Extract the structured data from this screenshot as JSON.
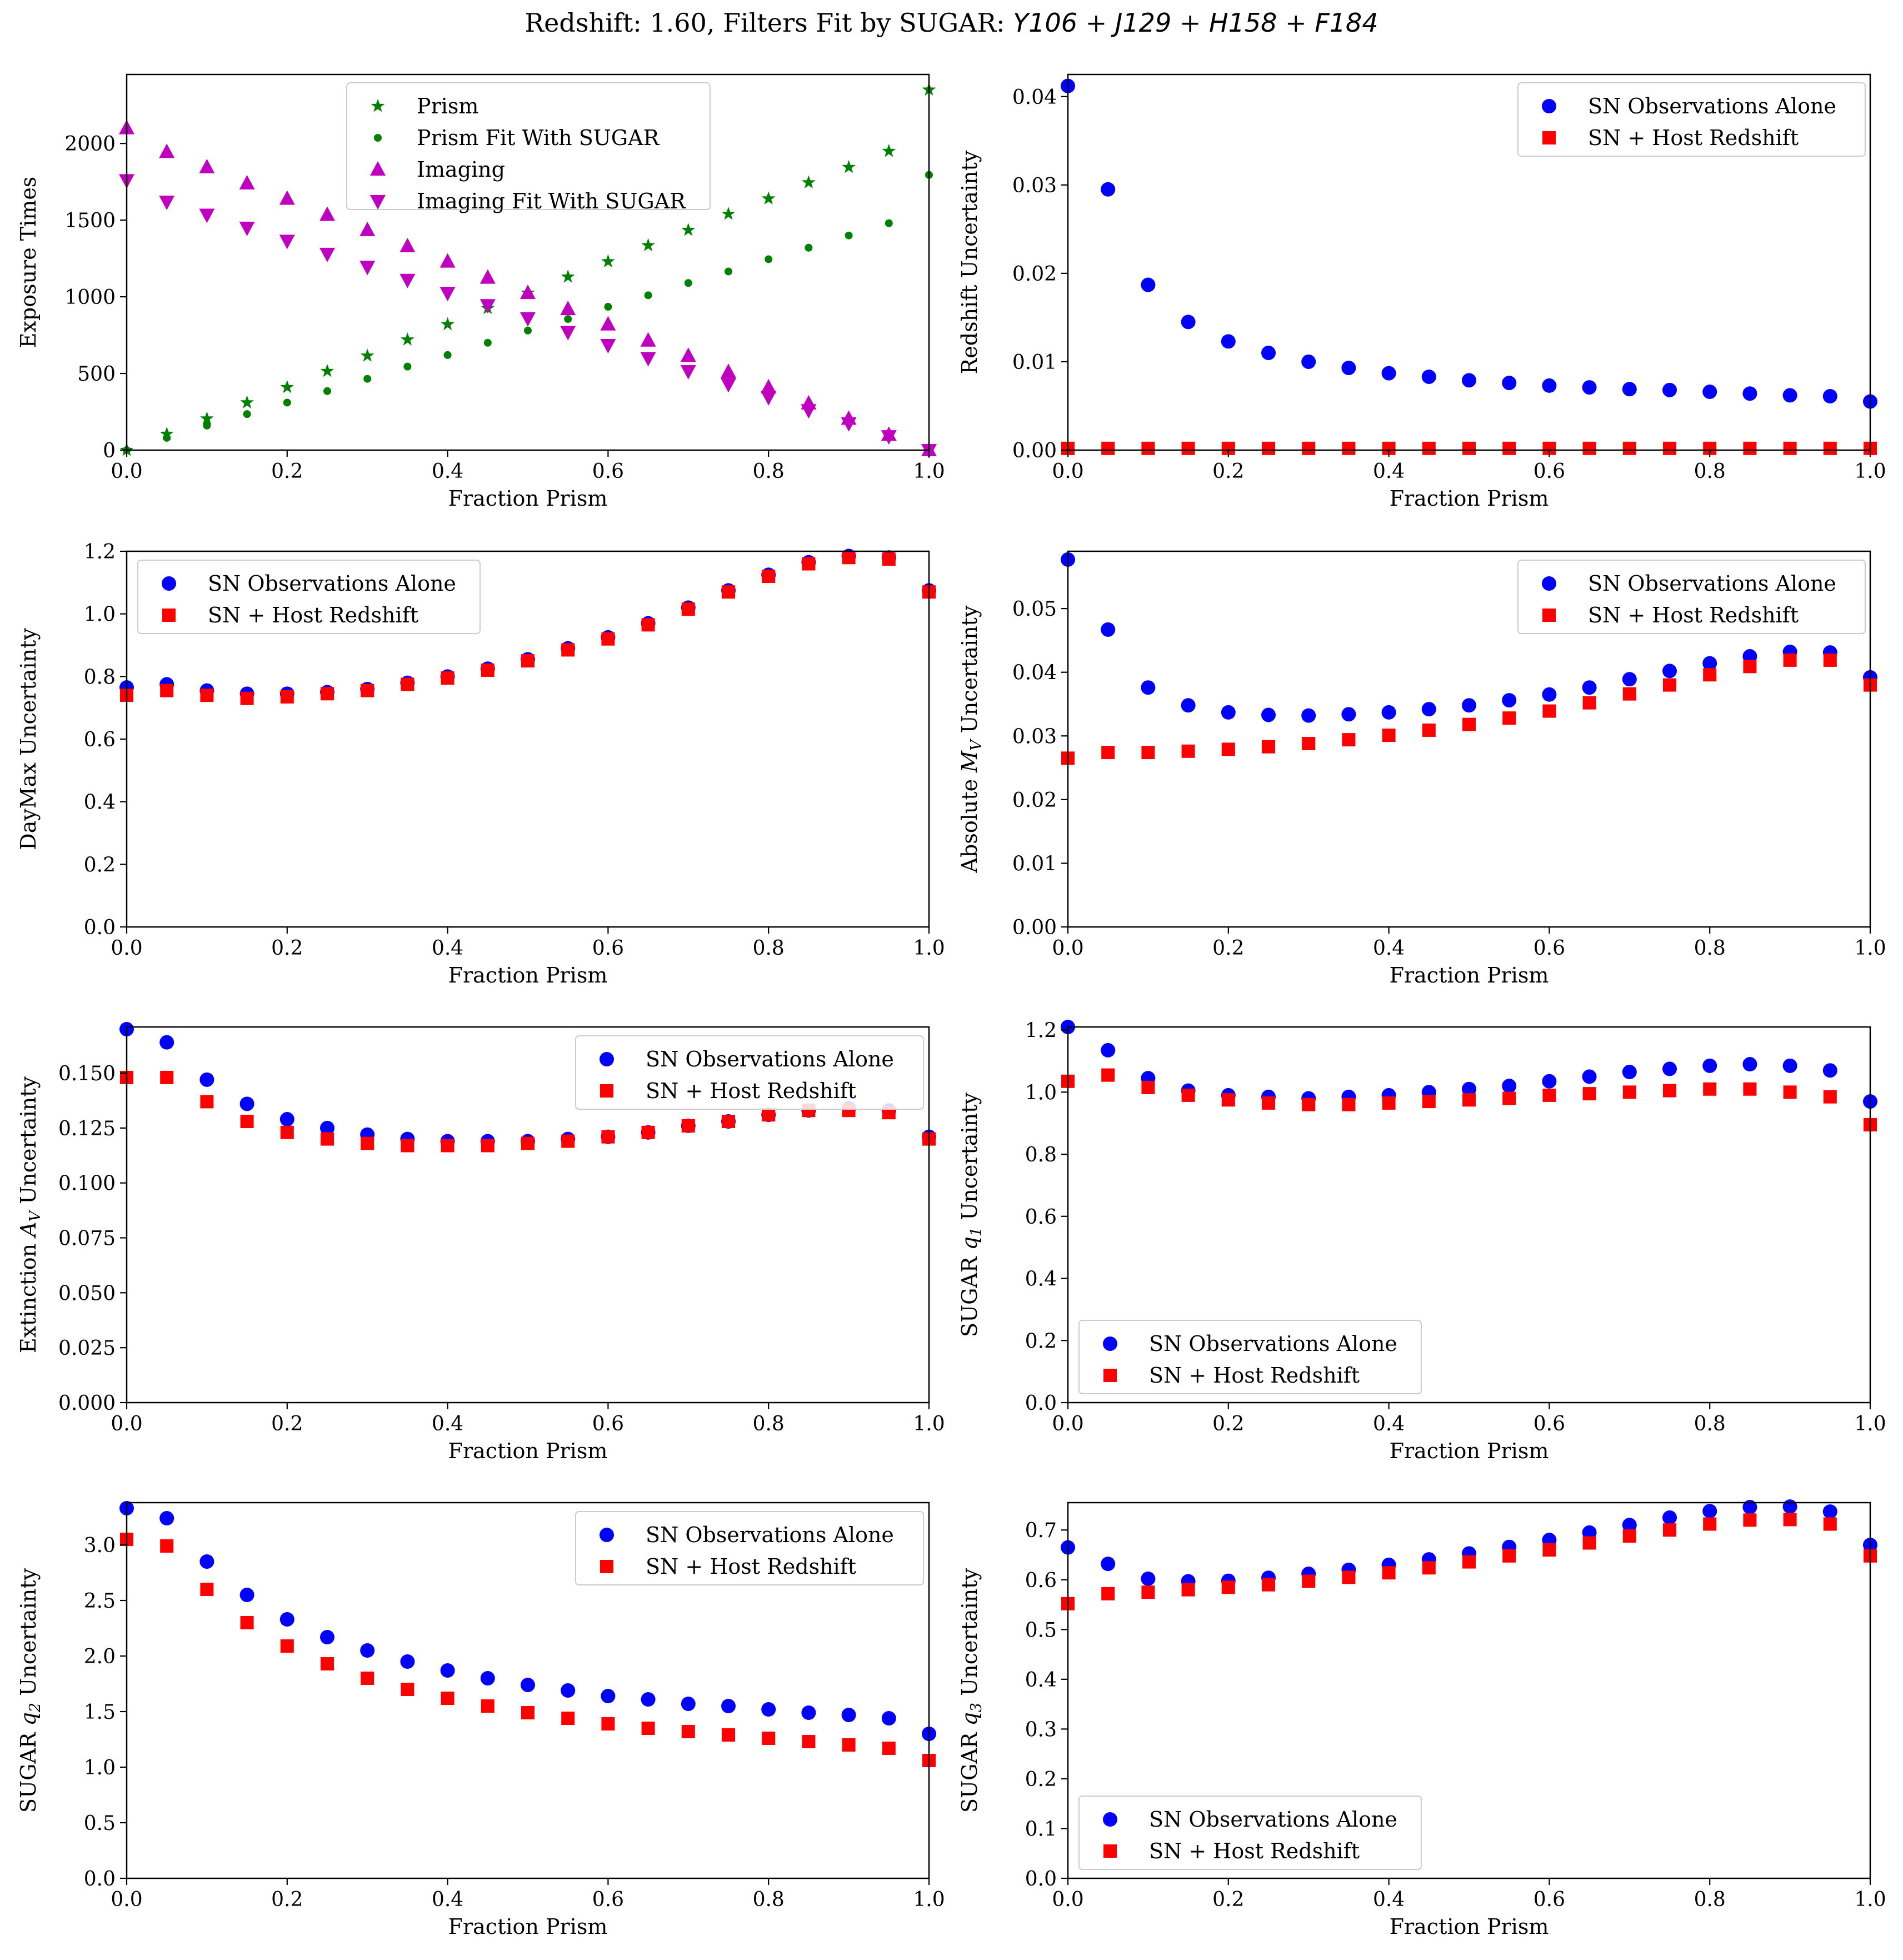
{
  "title": {
    "prefix": "Redshift: 1.60, Filters Fit by SUGAR: ",
    "filters": [
      "Y106",
      "J129",
      "H158",
      "F184"
    ],
    "joiner": " + "
  },
  "colors": {
    "green": "#008000",
    "magenta": "#bf00bf",
    "blue": "#0000ff",
    "red": "#ff0000"
  },
  "chart_data": [
    {
      "type": "scatter",
      "xlabel": "Fraction Prism",
      "ylabel": "Exposure Times",
      "xlim": [
        0,
        1.0
      ],
      "ylim": [
        0,
        2450
      ],
      "xticks": [
        0.0,
        0.2,
        0.4,
        0.6,
        0.8,
        1.0
      ],
      "xtick_labels": [
        "0.0",
        "0.2",
        "0.4",
        "0.6",
        "0.8",
        "1.0"
      ],
      "yticks": [
        0,
        500,
        1000,
        1500,
        2000
      ],
      "ytick_labels": [
        "0",
        "500",
        "1000",
        "1500",
        "2000"
      ],
      "legend_loc": "upper-center",
      "x": [
        0,
        0.05,
        0.1,
        0.15,
        0.2,
        0.25,
        0.3,
        0.35,
        0.4,
        0.45,
        0.5,
        0.55,
        0.6,
        0.65,
        0.7,
        0.75,
        0.8,
        0.85,
        0.9,
        0.95,
        1.0
      ],
      "series": [
        {
          "name": "Prism",
          "marker": "star",
          "color": "#008000",
          "values": [
            0,
            105,
            205,
            310,
            410,
            515,
            615,
            720,
            820,
            925,
            1025,
            1130,
            1230,
            1335,
            1435,
            1540,
            1640,
            1745,
            1845,
            1950,
            2350
          ]
        },
        {
          "name": "Prism Fit With SUGAR",
          "marker": "dot",
          "color": "#008000",
          "values": [
            0,
            80,
            160,
            235,
            310,
            385,
            465,
            545,
            620,
            700,
            780,
            855,
            935,
            1010,
            1090,
            1165,
            1245,
            1320,
            1400,
            1480,
            1795
          ]
        },
        {
          "name": "Imaging",
          "marker": "triangle-up",
          "color": "#bf00bf",
          "values": [
            2100,
            1945,
            1845,
            1740,
            1640,
            1535,
            1435,
            1330,
            1230,
            1125,
            1025,
            920,
            820,
            715,
            615,
            510,
            410,
            305,
            205,
            100,
            0
          ]
        },
        {
          "name": "Imaging Fit With SUGAR",
          "marker": "triangle-down",
          "color": "#bf00bf",
          "values": [
            1760,
            1620,
            1535,
            1450,
            1365,
            1280,
            1195,
            1110,
            1025,
            945,
            860,
            770,
            685,
            600,
            515,
            430,
            345,
            260,
            175,
            90,
            0
          ]
        }
      ]
    },
    {
      "type": "scatter",
      "xlabel": "Fraction Prism",
      "ylabel": "Redshift Uncertainty",
      "xlim": [
        0,
        1.0
      ],
      "ylim": [
        0,
        0.0425
      ],
      "xticks": [
        0.0,
        0.2,
        0.4,
        0.6,
        0.8,
        1.0
      ],
      "xtick_labels": [
        "0.0",
        "0.2",
        "0.4",
        "0.6",
        "0.8",
        "1.0"
      ],
      "yticks": [
        0,
        0.01,
        0.02,
        0.03,
        0.04
      ],
      "ytick_labels": [
        "0.00",
        "0.01",
        "0.02",
        "0.03",
        "0.04"
      ],
      "legend_loc": "upper-right",
      "x": [
        0,
        0.05,
        0.1,
        0.15,
        0.2,
        0.25,
        0.3,
        0.35,
        0.4,
        0.45,
        0.5,
        0.55,
        0.6,
        0.65,
        0.7,
        0.75,
        0.8,
        0.85,
        0.9,
        0.95,
        1.0
      ],
      "series": [
        {
          "name": "SN Observations Alone",
          "marker": "circle",
          "color": "#0000ff",
          "values": [
            0.0412,
            0.0295,
            0.0187,
            0.0145,
            0.0123,
            0.011,
            0.01,
            0.0093,
            0.0087,
            0.0083,
            0.0079,
            0.0076,
            0.0073,
            0.0071,
            0.0069,
            0.0068,
            0.0066,
            0.0064,
            0.0062,
            0.0061,
            0.0055
          ]
        },
        {
          "name": "SN + Host Redshift",
          "marker": "square",
          "color": "#ff0000",
          "values": [
            0.0002,
            0.0002,
            0.0002,
            0.0002,
            0.0002,
            0.0002,
            0.0002,
            0.0002,
            0.0002,
            0.0002,
            0.0002,
            0.0002,
            0.0002,
            0.0002,
            0.0002,
            0.0002,
            0.0002,
            0.0002,
            0.0002,
            0.0002,
            0.0002
          ]
        }
      ]
    },
    {
      "type": "scatter",
      "xlabel": "Fraction Prism",
      "ylabel": "DayMax Uncertainty",
      "xlim": [
        0,
        1.0
      ],
      "ylim": [
        0,
        1.2
      ],
      "xticks": [
        0.0,
        0.2,
        0.4,
        0.6,
        0.8,
        1.0
      ],
      "xtick_labels": [
        "0.0",
        "0.2",
        "0.4",
        "0.6",
        "0.8",
        "1.0"
      ],
      "yticks": [
        0,
        0.2,
        0.4,
        0.6,
        0.8,
        1.0,
        1.2
      ],
      "ytick_labels": [
        "0.0",
        "0.2",
        "0.4",
        "0.6",
        "0.8",
        "1.0",
        "1.2"
      ],
      "legend_loc": "upper-left",
      "x": [
        0,
        0.05,
        0.1,
        0.15,
        0.2,
        0.25,
        0.3,
        0.35,
        0.4,
        0.45,
        0.5,
        0.55,
        0.6,
        0.65,
        0.7,
        0.75,
        0.8,
        0.85,
        0.9,
        0.95,
        1.0
      ],
      "series": [
        {
          "name": "SN Observations Alone",
          "marker": "circle",
          "color": "#0000ff",
          "values": [
            0.765,
            0.775,
            0.755,
            0.745,
            0.745,
            0.75,
            0.76,
            0.78,
            0.8,
            0.825,
            0.855,
            0.89,
            0.925,
            0.97,
            1.02,
            1.075,
            1.125,
            1.165,
            1.185,
            1.18,
            1.075
          ]
        },
        {
          "name": "SN + Host Redshift",
          "marker": "square",
          "color": "#ff0000",
          "values": [
            0.74,
            0.755,
            0.74,
            0.73,
            0.735,
            0.745,
            0.755,
            0.775,
            0.795,
            0.82,
            0.85,
            0.885,
            0.92,
            0.965,
            1.015,
            1.07,
            1.12,
            1.16,
            1.18,
            1.175,
            1.07
          ]
        }
      ]
    },
    {
      "type": "scatter",
      "xlabel": "Fraction Prism",
      "ylabel": "Absolute M_V Uncertainty",
      "xlim": [
        0,
        1.0
      ],
      "ylim": [
        0,
        0.059
      ],
      "xticks": [
        0.0,
        0.2,
        0.4,
        0.6,
        0.8,
        1.0
      ],
      "xtick_labels": [
        "0.0",
        "0.2",
        "0.4",
        "0.6",
        "0.8",
        "1.0"
      ],
      "yticks": [
        0,
        0.01,
        0.02,
        0.03,
        0.04,
        0.05
      ],
      "ytick_labels": [
        "0.00",
        "0.01",
        "0.02",
        "0.03",
        "0.04",
        "0.05"
      ],
      "legend_loc": "upper-right",
      "x": [
        0,
        0.05,
        0.1,
        0.15,
        0.2,
        0.25,
        0.3,
        0.35,
        0.4,
        0.45,
        0.5,
        0.55,
        0.6,
        0.65,
        0.7,
        0.75,
        0.8,
        0.85,
        0.9,
        0.95,
        1.0
      ],
      "series": [
        {
          "name": "SN Observations Alone",
          "marker": "circle",
          "color": "#0000ff",
          "values": [
            0.0577,
            0.0467,
            0.0376,
            0.0348,
            0.0337,
            0.0333,
            0.0332,
            0.0334,
            0.0337,
            0.0342,
            0.0348,
            0.0356,
            0.0365,
            0.0376,
            0.0389,
            0.0402,
            0.0414,
            0.0425,
            0.0432,
            0.0431,
            0.0392
          ]
        },
        {
          "name": "SN + Host Redshift",
          "marker": "square",
          "color": "#ff0000",
          "values": [
            0.0265,
            0.0274,
            0.0274,
            0.0276,
            0.0279,
            0.0283,
            0.0288,
            0.0294,
            0.0301,
            0.0309,
            0.0318,
            0.0328,
            0.0339,
            0.0352,
            0.0366,
            0.038,
            0.0396,
            0.0409,
            0.0419,
            0.0419,
            0.038
          ]
        }
      ]
    },
    {
      "type": "scatter",
      "xlabel": "Fraction Prism",
      "ylabel": "Extinction A_V Uncertainty",
      "xlim": [
        0,
        1.0
      ],
      "ylim": [
        0,
        0.171
      ],
      "xticks": [
        0.0,
        0.2,
        0.4,
        0.6,
        0.8,
        1.0
      ],
      "xtick_labels": [
        "0.0",
        "0.2",
        "0.4",
        "0.6",
        "0.8",
        "1.0"
      ],
      "yticks": [
        0,
        0.025,
        0.05,
        0.075,
        0.1,
        0.125,
        0.15
      ],
      "ytick_labels": [
        "0.000",
        "0.025",
        "0.050",
        "0.075",
        "0.100",
        "0.125",
        "0.150"
      ],
      "legend_loc": "upper-right",
      "x": [
        0,
        0.05,
        0.1,
        0.15,
        0.2,
        0.25,
        0.3,
        0.35,
        0.4,
        0.45,
        0.5,
        0.55,
        0.6,
        0.65,
        0.7,
        0.75,
        0.8,
        0.85,
        0.9,
        0.95,
        1.0
      ],
      "series": [
        {
          "name": "SN Observations Alone",
          "marker": "circle",
          "color": "#0000ff",
          "values": [
            0.17,
            0.164,
            0.147,
            0.136,
            0.129,
            0.125,
            0.122,
            0.12,
            0.119,
            0.119,
            0.119,
            0.12,
            0.121,
            0.123,
            0.126,
            0.128,
            0.131,
            0.133,
            0.134,
            0.133,
            0.121
          ]
        },
        {
          "name": "SN + Host Redshift",
          "marker": "square",
          "color": "#ff0000",
          "values": [
            0.148,
            0.148,
            0.137,
            0.128,
            0.123,
            0.12,
            0.118,
            0.117,
            0.117,
            0.117,
            0.118,
            0.119,
            0.121,
            0.123,
            0.126,
            0.128,
            0.131,
            0.133,
            0.133,
            0.132,
            0.12
          ]
        }
      ]
    },
    {
      "type": "scatter",
      "xlabel": "Fraction Prism",
      "ylabel": "SUGAR q_1 Uncertainty",
      "xlim": [
        0,
        1.0
      ],
      "ylim": [
        0,
        1.21
      ],
      "xticks": [
        0.0,
        0.2,
        0.4,
        0.6,
        0.8,
        1.0
      ],
      "xtick_labels": [
        "0.0",
        "0.2",
        "0.4",
        "0.6",
        "0.8",
        "1.0"
      ],
      "yticks": [
        0,
        0.2,
        0.4,
        0.6,
        0.8,
        1.0,
        1.2
      ],
      "ytick_labels": [
        "0.0",
        "0.2",
        "0.4",
        "0.6",
        "0.8",
        "1.0",
        "1.2"
      ],
      "legend_loc": "lower-left",
      "x": [
        0,
        0.05,
        0.1,
        0.15,
        0.2,
        0.25,
        0.3,
        0.35,
        0.4,
        0.45,
        0.5,
        0.55,
        0.6,
        0.65,
        0.7,
        0.75,
        0.8,
        0.85,
        0.9,
        0.95,
        1.0
      ],
      "series": [
        {
          "name": "SN Observations Alone",
          "marker": "circle",
          "color": "#0000ff",
          "values": [
            1.21,
            1.135,
            1.045,
            1.005,
            0.99,
            0.985,
            0.98,
            0.985,
            0.99,
            1.0,
            1.01,
            1.02,
            1.035,
            1.05,
            1.065,
            1.075,
            1.085,
            1.09,
            1.085,
            1.07,
            0.97
          ]
        },
        {
          "name": "SN + Host Redshift",
          "marker": "square",
          "color": "#ff0000",
          "values": [
            1.035,
            1.055,
            1.015,
            0.99,
            0.975,
            0.965,
            0.96,
            0.96,
            0.965,
            0.97,
            0.975,
            0.98,
            0.99,
            0.995,
            1.0,
            1.005,
            1.01,
            1.01,
            1.0,
            0.985,
            0.895
          ]
        }
      ]
    },
    {
      "type": "scatter",
      "xlabel": "Fraction Prism",
      "ylabel": "SUGAR q_2 Uncertainty",
      "xlim": [
        0,
        1.0
      ],
      "ylim": [
        0,
        3.38
      ],
      "xticks": [
        0.0,
        0.2,
        0.4,
        0.6,
        0.8,
        1.0
      ],
      "xtick_labels": [
        "0.0",
        "0.2",
        "0.4",
        "0.6",
        "0.8",
        "1.0"
      ],
      "yticks": [
        0,
        0.5,
        1.0,
        1.5,
        2.0,
        2.5,
        3.0
      ],
      "ytick_labels": [
        "0.0",
        "0.5",
        "1.0",
        "1.5",
        "2.0",
        "2.5",
        "3.0"
      ],
      "legend_loc": "upper-right",
      "x": [
        0,
        0.05,
        0.1,
        0.15,
        0.2,
        0.25,
        0.3,
        0.35,
        0.4,
        0.45,
        0.5,
        0.55,
        0.6,
        0.65,
        0.7,
        0.75,
        0.8,
        0.85,
        0.9,
        0.95,
        1.0
      ],
      "series": [
        {
          "name": "SN Observations Alone",
          "marker": "circle",
          "color": "#0000ff",
          "values": [
            3.33,
            3.24,
            2.85,
            2.55,
            2.33,
            2.17,
            2.05,
            1.95,
            1.87,
            1.8,
            1.74,
            1.69,
            1.64,
            1.61,
            1.57,
            1.55,
            1.52,
            1.49,
            1.47,
            1.44,
            1.3
          ]
        },
        {
          "name": "SN + Host Redshift",
          "marker": "square",
          "color": "#ff0000",
          "values": [
            3.05,
            2.99,
            2.6,
            2.3,
            2.09,
            1.93,
            1.8,
            1.7,
            1.62,
            1.55,
            1.49,
            1.44,
            1.39,
            1.35,
            1.32,
            1.29,
            1.26,
            1.23,
            1.2,
            1.17,
            1.06
          ]
        }
      ]
    },
    {
      "type": "scatter",
      "xlabel": "Fraction Prism",
      "ylabel": "SUGAR q_3 Uncertainty",
      "xlim": [
        0,
        1.0
      ],
      "ylim": [
        0,
        0.755
      ],
      "xticks": [
        0.0,
        0.2,
        0.4,
        0.6,
        0.8,
        1.0
      ],
      "xtick_labels": [
        "0.0",
        "0.2",
        "0.4",
        "0.6",
        "0.8",
        "1.0"
      ],
      "yticks": [
        0,
        0.1,
        0.2,
        0.3,
        0.4,
        0.5,
        0.6,
        0.7
      ],
      "ytick_labels": [
        "0.0",
        "0.1",
        "0.2",
        "0.3",
        "0.4",
        "0.5",
        "0.6",
        "0.7"
      ],
      "legend_loc": "lower-left",
      "x": [
        0,
        0.05,
        0.1,
        0.15,
        0.2,
        0.25,
        0.3,
        0.35,
        0.4,
        0.45,
        0.5,
        0.55,
        0.6,
        0.65,
        0.7,
        0.75,
        0.8,
        0.85,
        0.9,
        0.95,
        1.0
      ],
      "series": [
        {
          "name": "SN Observations Alone",
          "marker": "circle",
          "color": "#0000ff",
          "values": [
            0.665,
            0.632,
            0.602,
            0.597,
            0.598,
            0.604,
            0.612,
            0.62,
            0.63,
            0.641,
            0.653,
            0.666,
            0.68,
            0.695,
            0.71,
            0.725,
            0.738,
            0.746,
            0.747,
            0.737,
            0.67
          ]
        },
        {
          "name": "SN + Host Redshift",
          "marker": "square",
          "color": "#ff0000",
          "values": [
            0.552,
            0.572,
            0.575,
            0.58,
            0.585,
            0.59,
            0.597,
            0.605,
            0.614,
            0.624,
            0.636,
            0.648,
            0.66,
            0.674,
            0.688,
            0.7,
            0.712,
            0.72,
            0.721,
            0.712,
            0.648
          ]
        }
      ]
    }
  ]
}
